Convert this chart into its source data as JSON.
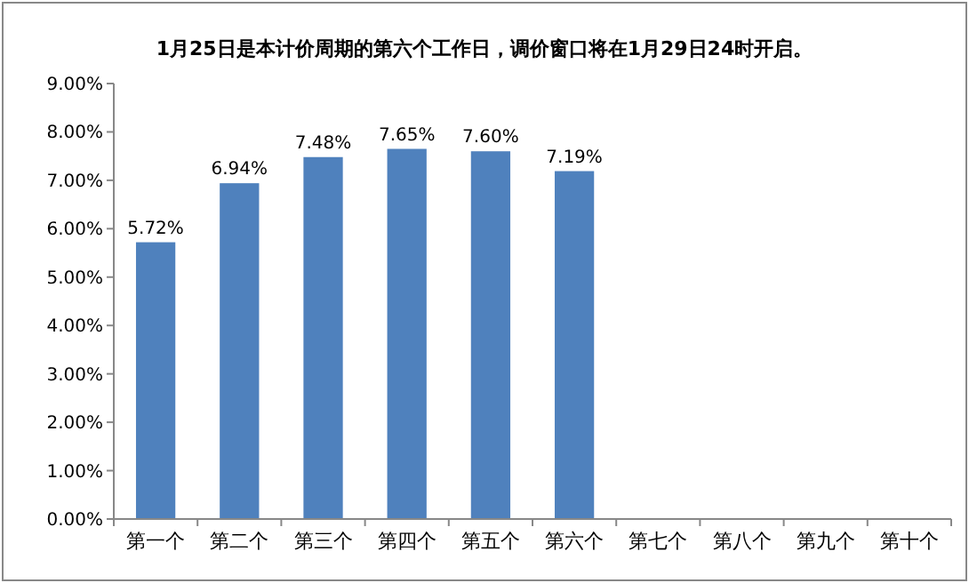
{
  "chart_data": {
    "type": "bar",
    "title": "1月25日是本计价周期的第六个工作日，调价窗口将在1月29日24时开启。",
    "categories": [
      "第一个",
      "第二个",
      "第三个",
      "第四个",
      "第五个",
      "第六个",
      "第七个",
      "第八个",
      "第九个",
      "第十个"
    ],
    "values": [
      5.72,
      6.94,
      7.48,
      7.65,
      7.6,
      7.19,
      null,
      null,
      null,
      null
    ],
    "value_labels": [
      "5.72%",
      "6.94%",
      "7.48%",
      "7.65%",
      "7.60%",
      "7.19%",
      null,
      null,
      null,
      null
    ],
    "color": "#4f81bd",
    "ylim": [
      0,
      9
    ],
    "yticks": [
      {
        "value": 0,
        "label": "0.00%"
      },
      {
        "value": 1,
        "label": "1.00%"
      },
      {
        "value": 2,
        "label": "2.00%"
      },
      {
        "value": 3,
        "label": "3.00%"
      },
      {
        "value": 4,
        "label": "4.00%"
      },
      {
        "value": 5,
        "label": "5.00%"
      },
      {
        "value": 6,
        "label": "6.00%"
      },
      {
        "value": 7,
        "label": "7.00%"
      },
      {
        "value": 8,
        "label": "8.00%"
      },
      {
        "value": 9,
        "label": "9.00%"
      }
    ],
    "grid": false
  }
}
